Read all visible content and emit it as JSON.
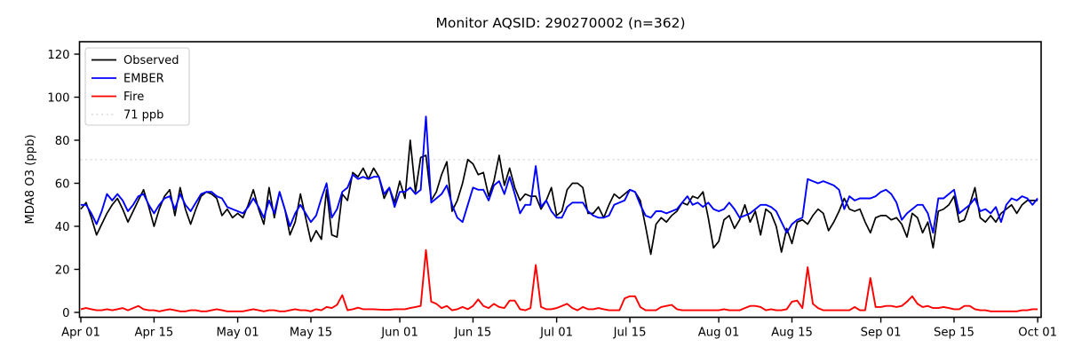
{
  "chart_data": {
    "type": "line",
    "title": "Monitor AQSID: 290270002 (n=362)",
    "xlabel": "",
    "ylabel": "MDA8 O3 (ppb)",
    "ylim": [
      -2.3,
      125.8
    ],
    "yticks": [
      0,
      20,
      40,
      60,
      80,
      100,
      120
    ],
    "xticks": [
      {
        "day": 0,
        "label": "Apr 01"
      },
      {
        "day": 14,
        "label": "Apr 15"
      },
      {
        "day": 30,
        "label": "May 01"
      },
      {
        "day": 44,
        "label": "May 15"
      },
      {
        "day": 61,
        "label": "Jun 01"
      },
      {
        "day": 75,
        "label": "Jun 15"
      },
      {
        "day": 91,
        "label": "Jul 01"
      },
      {
        "day": 105,
        "label": "Jul 15"
      },
      {
        "day": 122,
        "label": "Aug 01"
      },
      {
        "day": 136,
        "label": "Aug 15"
      },
      {
        "day": 153,
        "label": "Sep 01"
      },
      {
        "day": 167,
        "label": "Sep 15"
      },
      {
        "day": 183,
        "label": "Oct 01"
      }
    ],
    "x_start_label": "Apr 01",
    "x_end_label": "Oct 01",
    "x_days": 183,
    "grid": false,
    "legend_position": "upper-left",
    "threshold": {
      "label": "71 ppb",
      "value": 71,
      "color": "#d4d4d4",
      "linestyle": "dotted"
    },
    "series": [
      {
        "name": "Observed",
        "color": "#000000",
        "values": [
          48,
          51,
          44,
          36,
          41,
          46,
          50,
          53,
          48,
          42,
          47,
          52,
          57,
          49,
          40,
          48,
          54,
          57,
          45,
          58,
          48,
          41,
          48,
          54,
          56,
          55,
          53,
          45,
          48,
          44,
          46,
          44,
          50,
          57,
          48,
          41,
          58,
          44,
          56,
          48,
          36,
          42,
          55,
          44,
          33,
          38,
          34,
          57,
          36,
          35,
          55,
          52,
          65,
          63,
          67,
          62,
          67,
          63,
          53,
          58,
          51,
          61,
          53,
          80,
          56,
          72,
          73,
          52,
          56,
          64,
          70,
          47,
          52,
          60,
          71,
          69,
          64,
          65,
          54,
          61,
          73,
          59,
          67,
          58,
          52,
          55,
          54,
          54,
          48,
          52,
          58,
          45,
          47,
          57,
          60,
          60,
          58,
          46,
          46,
          49,
          44,
          50,
          55,
          53,
          55,
          57,
          56,
          52,
          40,
          27,
          41,
          44,
          42,
          45,
          47,
          51,
          50,
          54,
          53,
          56,
          44,
          30,
          33,
          43,
          45,
          39,
          43,
          50,
          42,
          47,
          36,
          48,
          46,
          40,
          28,
          39,
          32,
          42,
          43,
          41,
          45,
          48,
          46,
          38,
          42,
          47,
          53,
          48,
          47,
          48,
          42,
          37,
          44,
          45,
          45,
          43,
          44,
          41,
          35,
          46,
          44,
          37,
          42,
          30,
          47,
          48,
          50,
          54,
          42,
          43,
          50,
          58,
          44,
          42,
          45,
          42,
          46,
          48,
          50,
          46,
          50,
          52,
          52,
          52
        ]
      },
      {
        "name": "EMBER",
        "color": "#0000ff",
        "values": [
          50,
          50,
          46,
          41,
          47,
          55,
          52,
          55,
          52,
          47,
          50,
          54,
          55,
          50,
          46,
          50,
          53,
          54,
          48,
          55,
          50,
          47,
          51,
          55,
          56,
          56,
          54,
          53,
          49,
          48,
          47,
          46,
          49,
          53,
          49,
          44,
          52,
          46,
          56,
          48,
          40,
          46,
          50,
          46,
          42,
          45,
          53,
          60,
          44,
          48,
          56,
          58,
          64,
          62,
          63,
          62,
          63,
          63,
          55,
          58,
          49,
          56,
          56,
          58,
          55,
          57,
          91,
          51,
          53,
          55,
          59,
          50,
          44,
          42,
          50,
          58,
          57,
          57,
          52,
          59,
          61,
          55,
          63,
          55,
          46,
          50,
          50,
          68,
          49,
          52,
          47,
          44,
          44,
          49,
          51,
          51,
          51,
          47,
          45,
          44,
          44,
          45,
          50,
          51,
          52,
          57,
          56,
          50,
          45,
          44,
          47,
          47,
          46,
          47,
          48,
          51,
          54,
          50,
          51,
          49,
          51,
          48,
          47,
          48,
          51,
          48,
          44,
          45,
          46,
          48,
          50,
          50,
          49,
          47,
          42,
          37,
          41,
          43,
          44,
          62,
          61,
          60,
          61,
          60,
          59,
          57,
          48,
          54,
          52,
          53,
          53,
          53,
          54,
          56,
          57,
          55,
          51,
          43,
          46,
          48,
          50,
          50,
          46,
          37,
          53,
          53,
          55,
          57,
          46,
          48,
          50,
          53,
          47,
          48,
          46,
          49,
          42,
          50,
          53,
          52,
          54,
          53,
          50,
          53
        ]
      },
      {
        "name": "Fire",
        "color": "#ff0000",
        "values": [
          1.5,
          2,
          1.5,
          1,
          1,
          1.5,
          1,
          1.5,
          2,
          1,
          2,
          3,
          1.5,
          1,
          1,
          0.5,
          1,
          1.5,
          1,
          0.5,
          0.5,
          1,
          1,
          0.5,
          0.5,
          1,
          1.5,
          1,
          0.5,
          0.5,
          0.5,
          0.5,
          1,
          1.5,
          1,
          0.5,
          1,
          1,
          0.5,
          0.5,
          1,
          1.5,
          1,
          1,
          0.5,
          1.5,
          1,
          2.5,
          2,
          3.5,
          8,
          1,
          1.5,
          2.2,
          1.5,
          1.5,
          1.5,
          1.3,
          1.2,
          1.2,
          1.5,
          1.5,
          1.5,
          2,
          2.5,
          3,
          29,
          5,
          4,
          2,
          3,
          1,
          1.5,
          2.5,
          1.5,
          3,
          6,
          3,
          2,
          4,
          2.5,
          2,
          5.5,
          5.5,
          1.5,
          1,
          2,
          22,
          2.5,
          1.5,
          1.5,
          2,
          3,
          4,
          2,
          1,
          2.5,
          1.5,
          1.5,
          2,
          1.5,
          1,
          1,
          1,
          6.5,
          7.5,
          7.5,
          2.5,
          1,
          1,
          1,
          2.5,
          3,
          3.5,
          1.5,
          1,
          1,
          1,
          1,
          1,
          1,
          1,
          1,
          1.5,
          1,
          1,
          1,
          2,
          3,
          3,
          2.5,
          1,
          1.5,
          1,
          1,
          1.5,
          5,
          5.5,
          2,
          21,
          4,
          2,
          1,
          1,
          1,
          1,
          1,
          1,
          2.5,
          1,
          1,
          16,
          2.5,
          2.5,
          3,
          3,
          2.5,
          3,
          5,
          7.5,
          4,
          2.5,
          3,
          2,
          2,
          2.5,
          2,
          1.5,
          1.5,
          3,
          3,
          1.5,
          1,
          1,
          0.5,
          0.5,
          0.5,
          0.5,
          0.5,
          0.5,
          1,
          1,
          1.5,
          1.5
        ]
      }
    ]
  }
}
